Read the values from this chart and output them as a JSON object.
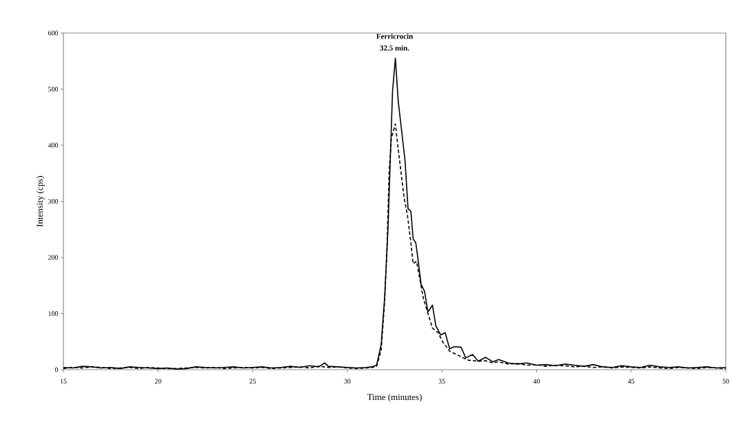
{
  "chart_data": {
    "type": "line",
    "xlabel": "Time (minutes)",
    "ylabel": "Intensity (cps)",
    "xlim": [
      15,
      50
    ],
    "ylim": [
      0,
      600
    ],
    "xticks": [
      15,
      20,
      25,
      30,
      35,
      40,
      45,
      50
    ],
    "yticks": [
      0,
      100,
      200,
      300,
      400,
      500,
      600
    ],
    "grid": false,
    "marker": "none",
    "annotations": [
      {
        "text": "**Ferricrocin**",
        "x": 32.5,
        "y": 555
      },
      {
        "text": "**32.5 min.**",
        "x": 32.5,
        "y": 555
      }
    ],
    "series": [
      {
        "color": "#000000",
        "line_style": "solid",
        "x": [
          15,
          15.5,
          16,
          16.5,
          17,
          17.5,
          18,
          18.5,
          19,
          19.5,
          20,
          20.5,
          21,
          21.5,
          22,
          22.5,
          23,
          23.5,
          24,
          24.5,
          25,
          25.5,
          26,
          26.5,
          27,
          27.5,
          28,
          28.5,
          28.8,
          29,
          29.5,
          30,
          30.5,
          31,
          31.3,
          31.55,
          31.79,
          31.97,
          32.15,
          32.27,
          32.39,
          32.54,
          32.69,
          33.05,
          33.21,
          33.36,
          33.48,
          33.62,
          33.72,
          33.9,
          34.08,
          34.26,
          34.5,
          34.68,
          34.93,
          35.17,
          35.41,
          35.65,
          36.01,
          36.26,
          36.62,
          36.92,
          37.3,
          37.7,
          38,
          38.5,
          39,
          39.5,
          40,
          40.5,
          41,
          41.5,
          42,
          42.5,
          43,
          43.5,
          44,
          44.5,
          45,
          45.5,
          46,
          46.5,
          47,
          47.5,
          48,
          48.5,
          49,
          49.5,
          50
        ],
        "values": [
          4,
          3,
          6,
          5,
          3,
          4,
          2,
          5,
          4,
          3,
          2,
          3,
          1,
          2,
          5,
          4,
          3,
          4,
          5,
          3,
          4,
          5,
          3,
          4,
          6,
          4,
          7,
          5,
          12,
          6,
          5,
          4,
          3,
          4,
          5,
          8,
          45,
          127,
          250,
          373,
          496,
          555,
          479,
          373,
          287,
          282,
          233,
          226,
          201,
          152,
          140,
          103,
          115,
          78,
          62,
          66,
          37,
          41,
          40,
          21,
          27,
          15,
          22,
          14,
          18,
          12,
          10,
          12,
          8,
          9,
          7,
          10,
          8,
          6,
          9,
          5,
          4,
          7,
          5,
          4,
          8,
          5,
          4,
          5,
          3,
          4,
          5,
          3,
          4
        ]
      },
      {
        "color": "#000000",
        "line_style": "dashed",
        "x": [
          15,
          15.5,
          16,
          16.5,
          17,
          17.5,
          18,
          18.5,
          19,
          19.5,
          20,
          20.5,
          21,
          21.5,
          22,
          22.5,
          23,
          23.5,
          24,
          24.5,
          25,
          25.5,
          26,
          26.5,
          27,
          27.5,
          28,
          28.5,
          29,
          29.5,
          30,
          30.5,
          31,
          31.3,
          31.55,
          31.79,
          31.97,
          32.09,
          32.21,
          32.33,
          32.54,
          32.69,
          32.81,
          33.0,
          33.18,
          33.36,
          33.48,
          33.66,
          33.84,
          34.02,
          34.2,
          34.5,
          34.8,
          35.05,
          35.41,
          35.89,
          36.38,
          36.92,
          37.3,
          37.7,
          38,
          38.5,
          39,
          39.5,
          40,
          40.5,
          41,
          41.5,
          42,
          42.5,
          43,
          43.5,
          44,
          44.5,
          45,
          45.5,
          46,
          46.5,
          47,
          47.5,
          48,
          48.5,
          49,
          49.5,
          50
        ],
        "values": [
          2,
          4,
          3,
          5,
          4,
          2,
          3,
          4,
          2,
          4,
          3,
          2,
          2,
          3,
          4,
          3,
          4,
          2,
          3,
          4,
          3,
          4,
          2,
          3,
          4,
          5,
          3,
          6,
          4,
          5,
          3,
          2,
          3,
          4,
          6,
          35,
          120,
          209,
          352,
          413,
          438,
          393,
          360,
          307,
          275,
          226,
          189,
          193,
          160,
          127,
          107,
          74,
          66,
          49,
          33,
          25,
          17,
          15,
          16,
          12,
          14,
          10,
          11,
          8,
          9,
          6,
          8,
          7,
          5,
          6,
          4,
          5,
          3,
          5,
          4,
          3,
          5,
          3,
          2,
          4,
          3,
          2,
          4,
          3,
          2
        ]
      }
    ]
  }
}
